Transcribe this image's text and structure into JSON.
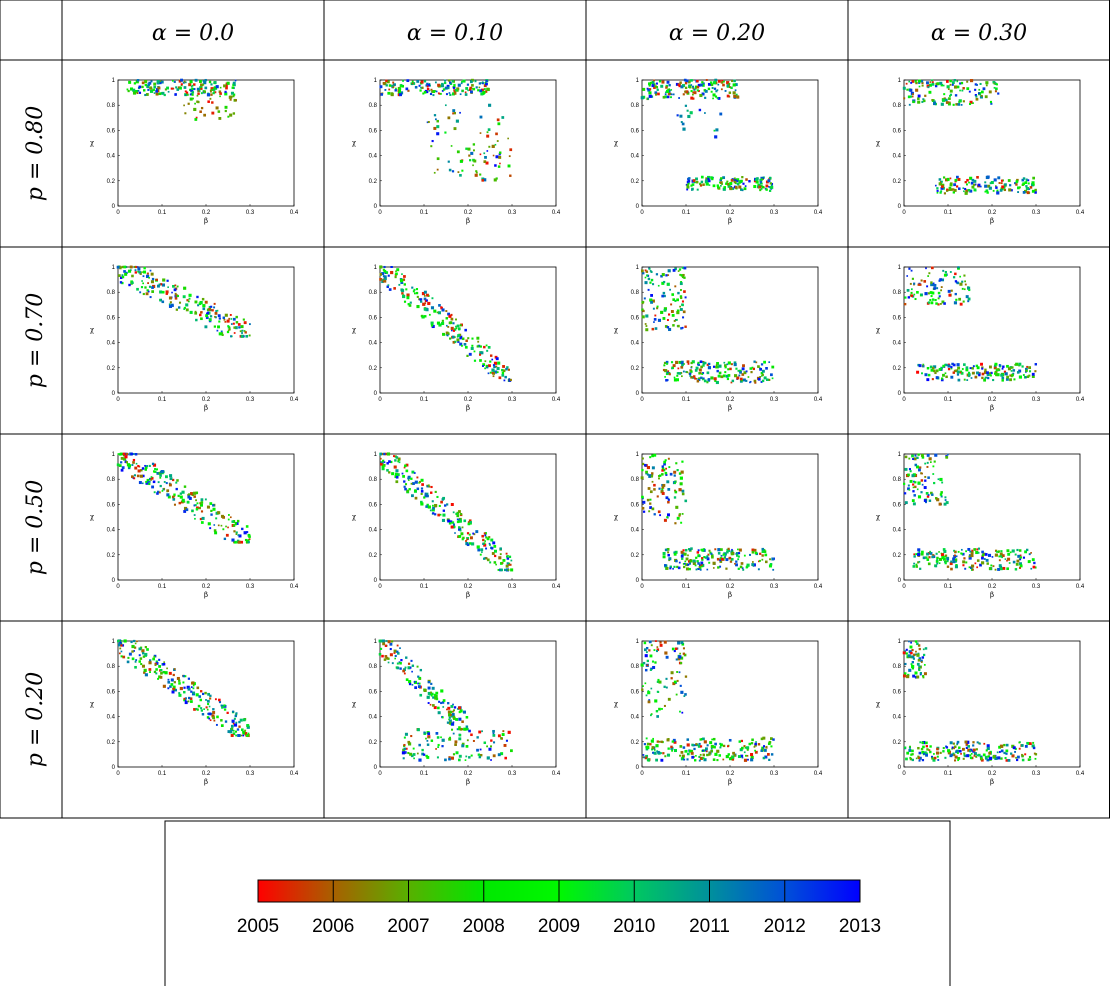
{
  "columns": [
    {
      "alpha": "α = 0.0"
    },
    {
      "alpha": "α = 0.10"
    },
    {
      "alpha": "α = 0.20"
    },
    {
      "alpha": "α = 0.30"
    }
  ],
  "rows": [
    {
      "p": "p = 0.80"
    },
    {
      "p": "p = 0.70"
    },
    {
      "p": "p = 0.50"
    },
    {
      "p": "p = 0.20"
    }
  ],
  "axes": {
    "xlabel": "β",
    "ylabel": "χ",
    "xlim": [
      0,
      0.4
    ],
    "ylim": [
      0,
      1
    ],
    "xticks": [
      "0",
      "0.1",
      "0.2",
      "0.3",
      "0.4"
    ],
    "yticks": [
      "0",
      "0.2",
      "0.4",
      "0.6",
      "0.8",
      "1"
    ],
    "grid": false
  },
  "colorbar": {
    "labels": [
      "2005",
      "2006",
      "2007",
      "2008",
      "2009",
      "2010",
      "2011",
      "2012",
      "2013"
    ],
    "colors": [
      "#ff0000",
      "#a86000",
      "#58b000",
      "#00e800",
      "#00f800",
      "#00c860",
      "#00909c",
      "#0050d8",
      "#0000ff"
    ]
  },
  "chart_data": {
    "type": "scatter",
    "layout": "4x4 grid of scatter panels; rows indexed by p, columns by alpha; point color encodes year (2005-2013)",
    "xlabel": "β",
    "ylabel": "χ",
    "xlim": [
      0,
      0.4
    ],
    "ylim": [
      0,
      1
    ],
    "color_scale": {
      "min": 2005,
      "max": 2013
    },
    "panels": [
      {
        "row": 0,
        "col": 0,
        "clusters": [
          {
            "year_from": 2005,
            "year_to": 2013,
            "x_range": [
              0.02,
              0.27
            ],
            "y_range": [
              0.88,
              1.0
            ],
            "n": 150
          },
          {
            "year_from": 2005,
            "year_to": 2008,
            "x_range": [
              0.15,
              0.27
            ],
            "y_range": [
              0.68,
              0.93
            ],
            "n": 40
          }
        ]
      },
      {
        "row": 0,
        "col": 1,
        "clusters": [
          {
            "year_from": 2005,
            "year_to": 2013,
            "x_range": [
              0.0,
              0.25
            ],
            "y_range": [
              0.88,
              1.0
            ],
            "n": 160
          },
          {
            "year_from": 2005,
            "year_to": 2013,
            "x_range": [
              0.1,
              0.28
            ],
            "y_range": [
              0.2,
              0.82
            ],
            "n": 60
          },
          {
            "year_from": 2005,
            "year_to": 2008,
            "x_range": [
              0.2,
              0.3
            ],
            "y_range": [
              0.2,
              0.6
            ],
            "n": 25
          }
        ]
      },
      {
        "row": 0,
        "col": 2,
        "clusters": [
          {
            "year_from": 2005,
            "year_to": 2013,
            "x_range": [
              0.0,
              0.22
            ],
            "y_range": [
              0.85,
              1.0
            ],
            "n": 150
          },
          {
            "year_from": 2009,
            "year_to": 2013,
            "x_range": [
              0.08,
              0.2
            ],
            "y_range": [
              0.5,
              0.8
            ],
            "n": 15
          },
          {
            "year_from": 2005,
            "year_to": 2013,
            "x_range": [
              0.1,
              0.3
            ],
            "y_range": [
              0.12,
              0.23
            ],
            "n": 130
          }
        ]
      },
      {
        "row": 0,
        "col": 3,
        "clusters": [
          {
            "year_from": 2005,
            "year_to": 2013,
            "x_range": [
              0.0,
              0.22
            ],
            "y_range": [
              0.8,
              1.0
            ],
            "n": 130
          },
          {
            "year_from": 2005,
            "year_to": 2013,
            "x_range": [
              0.07,
              0.3
            ],
            "y_range": [
              0.1,
              0.23
            ],
            "n": 130
          }
        ]
      },
      {
        "row": 1,
        "col": 0,
        "clusters": [
          {
            "year_from": 2005,
            "year_to": 2013,
            "x_range": [
              0.0,
              0.3
            ],
            "y_range": [
              0.45,
              1.0
            ],
            "n": 200,
            "trend": "descending"
          }
        ]
      },
      {
        "row": 1,
        "col": 1,
        "clusters": [
          {
            "year_from": 2005,
            "year_to": 2013,
            "x_range": [
              0.0,
              0.3
            ],
            "y_range": [
              0.1,
              1.0
            ],
            "n": 220,
            "trend": "descending"
          }
        ]
      },
      {
        "row": 1,
        "col": 2,
        "clusters": [
          {
            "year_from": 2005,
            "year_to": 2013,
            "x_range": [
              0.0,
              0.1
            ],
            "y_range": [
              0.5,
              1.0
            ],
            "n": 110
          },
          {
            "year_from": 2005,
            "year_to": 2013,
            "x_range": [
              0.05,
              0.3
            ],
            "y_range": [
              0.08,
              0.25
            ],
            "n": 170
          }
        ]
      },
      {
        "row": 1,
        "col": 3,
        "clusters": [
          {
            "year_from": 2005,
            "year_to": 2013,
            "x_range": [
              0.0,
              0.15
            ],
            "y_range": [
              0.7,
              1.0
            ],
            "n": 100
          },
          {
            "year_from": 2005,
            "year_to": 2013,
            "x_range": [
              0.03,
              0.3
            ],
            "y_range": [
              0.1,
              0.23
            ],
            "n": 160
          }
        ]
      },
      {
        "row": 2,
        "col": 0,
        "clusters": [
          {
            "year_from": 2005,
            "year_to": 2013,
            "x_range": [
              0.0,
              0.3
            ],
            "y_range": [
              0.3,
              1.0
            ],
            "n": 220,
            "trend": "descending"
          }
        ]
      },
      {
        "row": 2,
        "col": 1,
        "clusters": [
          {
            "year_from": 2005,
            "year_to": 2013,
            "x_range": [
              0.0,
              0.3
            ],
            "y_range": [
              0.08,
              1.0
            ],
            "n": 230,
            "trend": "descending"
          }
        ]
      },
      {
        "row": 2,
        "col": 2,
        "clusters": [
          {
            "year_from": 2005,
            "year_to": 2013,
            "x_range": [
              0.0,
              0.1
            ],
            "y_range": [
              0.45,
              1.0
            ],
            "n": 100
          },
          {
            "year_from": 2005,
            "year_to": 2013,
            "x_range": [
              0.05,
              0.3
            ],
            "y_range": [
              0.08,
              0.25
            ],
            "n": 180
          }
        ]
      },
      {
        "row": 2,
        "col": 3,
        "clusters": [
          {
            "year_from": 2005,
            "year_to": 2013,
            "x_range": [
              0.0,
              0.1
            ],
            "y_range": [
              0.6,
              1.0
            ],
            "n": 90
          },
          {
            "year_from": 2005,
            "year_to": 2013,
            "x_range": [
              0.02,
              0.3
            ],
            "y_range": [
              0.08,
              0.25
            ],
            "n": 180
          }
        ]
      },
      {
        "row": 3,
        "col": 0,
        "clusters": [
          {
            "year_from": 2005,
            "year_to": 2013,
            "x_range": [
              0.0,
              0.3
            ],
            "y_range": [
              0.25,
              1.0
            ],
            "n": 230,
            "trend": "descending"
          }
        ]
      },
      {
        "row": 3,
        "col": 1,
        "clusters": [
          {
            "year_from": 2005,
            "year_to": 2013,
            "x_range": [
              0.0,
              0.2
            ],
            "y_range": [
              0.3,
              1.0
            ],
            "n": 150,
            "trend": "descending"
          },
          {
            "year_from": 2005,
            "year_to": 2013,
            "x_range": [
              0.05,
              0.3
            ],
            "y_range": [
              0.05,
              0.3
            ],
            "n": 110
          }
        ]
      },
      {
        "row": 3,
        "col": 2,
        "clusters": [
          {
            "year_from": 2005,
            "year_to": 2013,
            "x_range": [
              0.0,
              0.1
            ],
            "y_range": [
              0.4,
              1.0
            ],
            "n": 90
          },
          {
            "year_from": 2005,
            "year_to": 2013,
            "x_range": [
              0.0,
              0.3
            ],
            "y_range": [
              0.05,
              0.23
            ],
            "n": 190
          }
        ]
      },
      {
        "row": 3,
        "col": 3,
        "clusters": [
          {
            "year_from": 2005,
            "year_to": 2013,
            "x_range": [
              0.0,
              0.05
            ],
            "y_range": [
              0.7,
              1.0
            ],
            "n": 60
          },
          {
            "year_from": 2005,
            "year_to": 2013,
            "x_range": [
              0.0,
              0.3
            ],
            "y_range": [
              0.05,
              0.2
            ],
            "n": 190
          }
        ]
      }
    ]
  }
}
